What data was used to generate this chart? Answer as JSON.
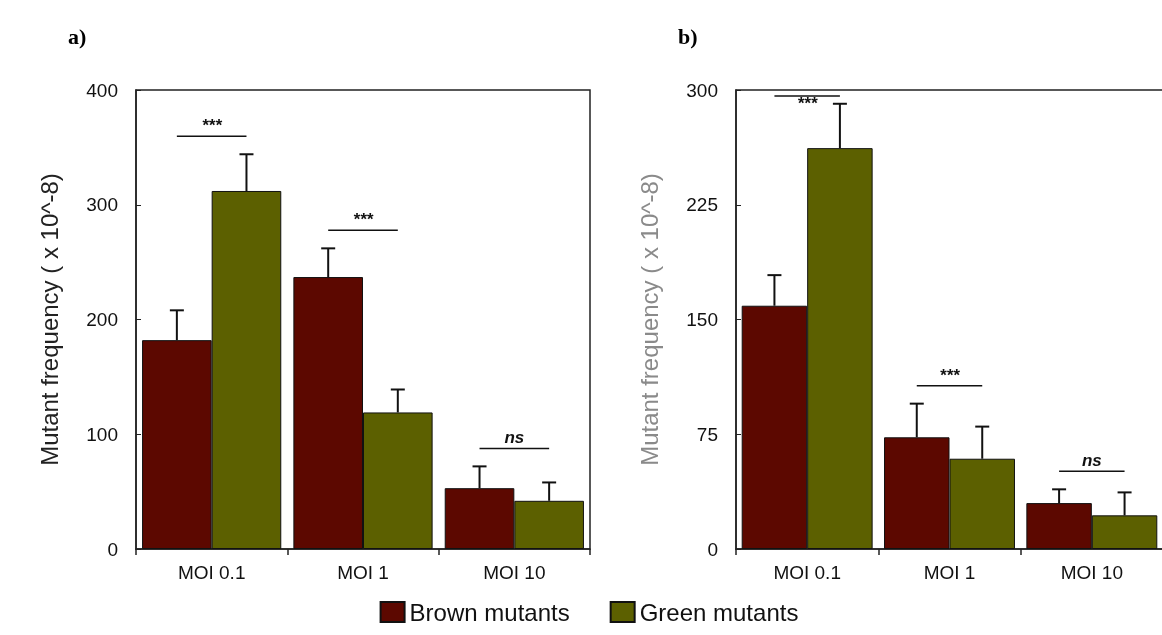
{
  "chart_data": [
    {
      "type": "bar",
      "title": "a)",
      "ylabel": "Mutant frequency ( x 10^-8)",
      "categories": [
        "MOI 0.1",
        "MOI 1",
        "MOI 10"
      ],
      "series": [
        {
          "name": "Brown mutants",
          "color": "#5c0800",
          "values": [
            182,
            237,
            53
          ],
          "errors": [
            26,
            25,
            19
          ]
        },
        {
          "name": "Green mutants",
          "color": "#5c6000",
          "values": [
            312,
            119,
            42
          ],
          "errors": [
            32,
            20,
            16
          ]
        }
      ],
      "ylim": [
        0,
        400
      ],
      "yticks": [
        0,
        100,
        200,
        300,
        400
      ],
      "grid": false,
      "legend": "bottom",
      "annotations": [
        "***",
        "***",
        "ns"
      ]
    },
    {
      "type": "bar",
      "title": "b)",
      "ylabel": "Mutant frequency ( x 10^-8)",
      "categories": [
        "MOI 0.1",
        "MOI 1",
        "MOI 10"
      ],
      "series": [
        {
          "color": "#5c0800",
          "values": [
            159,
            73,
            30
          ],
          "errors": [
            20,
            22,
            9
          ]
        },
        {
          "color": "#5c6000",
          "values": [
            262,
            59,
            22
          ],
          "errors": [
            29,
            21,
            15
          ]
        }
      ],
      "ylim": [
        0,
        300
      ],
      "yticks": [
        0,
        75,
        150,
        225,
        300
      ],
      "grid": false,
      "annotations": [
        "***",
        "***",
        "ns"
      ]
    }
  ]
}
